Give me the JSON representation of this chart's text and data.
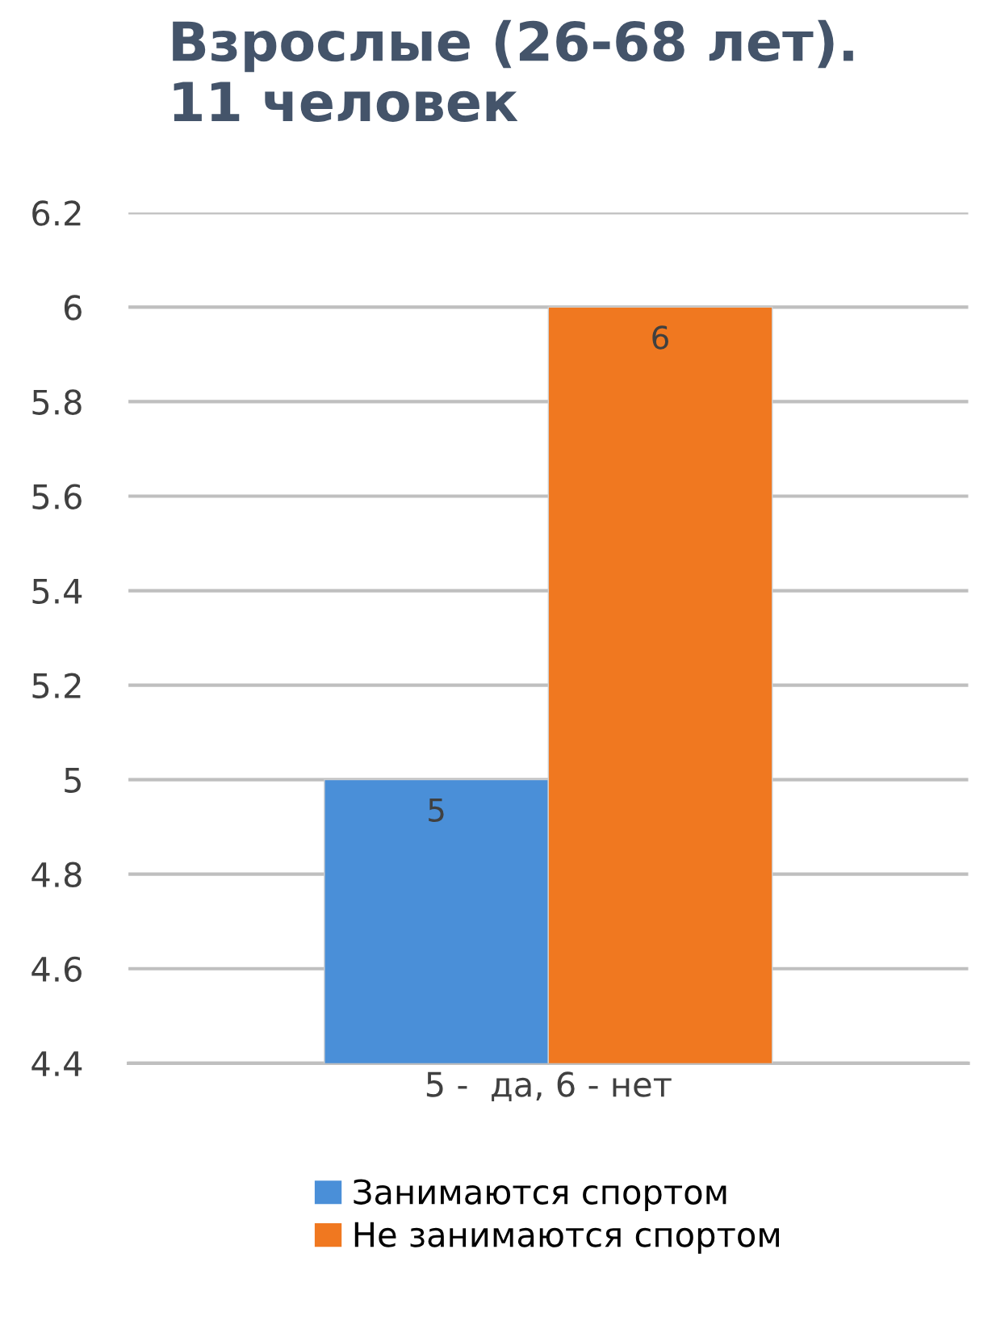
{
  "chart_data": {
    "type": "bar",
    "title": "Взрослые (26-68 лет).\n11 человек",
    "categories": [
      "5 -  да, 6 - нет"
    ],
    "series": [
      {
        "name": "Занимаются спортом",
        "color": "#4a8fd8",
        "values": [
          5
        ]
      },
      {
        "name": "Не занимаются спортом",
        "color": "#f07820",
        "values": [
          6
        ]
      }
    ],
    "ylim": [
      4.4,
      6.2
    ],
    "yticks": [
      4.4,
      4.6,
      4.8,
      5,
      5.2,
      5.4,
      5.6,
      5.8,
      6,
      6.2
    ],
    "grid": "y",
    "legend": "bottom",
    "data_labels": true
  }
}
